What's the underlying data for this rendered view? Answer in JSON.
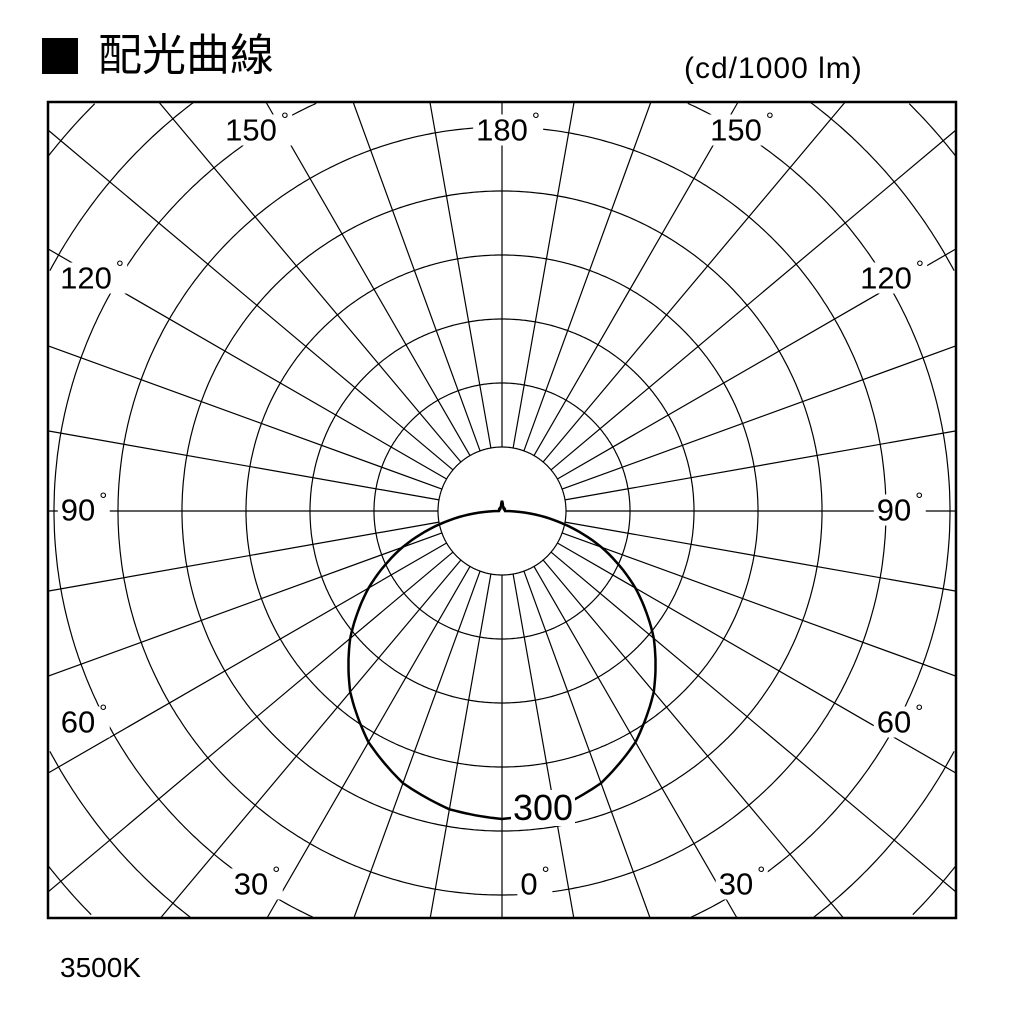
{
  "title": "配光曲線",
  "unit": "(cd/1000 lm)",
  "footer": "3500K",
  "chart_data": {
    "type": "polar",
    "title": "配光曲線",
    "unit": "(cd/1000 lm)",
    "angle_labels": [
      {
        "text": "180",
        "deg": "°"
      },
      {
        "text": "150",
        "deg": "°"
      },
      {
        "text": "150",
        "deg": "°"
      },
      {
        "text": "120",
        "deg": "°"
      },
      {
        "text": "120",
        "deg": "°"
      },
      {
        "text": "90",
        "deg": "°"
      },
      {
        "text": "90",
        "deg": "°"
      },
      {
        "text": "60",
        "deg": "°"
      },
      {
        "text": "60",
        "deg": "°"
      },
      {
        "text": "30",
        "deg": "°"
      },
      {
        "text": "30",
        "deg": "°"
      },
      {
        "text": "0",
        "deg": "°"
      }
    ],
    "radial_label": "300",
    "grid": true,
    "radial_line_step_deg": 10,
    "series": [
      {
        "angles_deg": [
          0,
          10,
          20,
          30,
          40,
          50,
          60,
          70,
          80,
          90,
          100,
          120,
          150,
          170,
          180
        ],
        "values_cd": [
          300,
          295,
          282,
          260,
          230,
          193,
          150,
          103,
          52,
          3,
          3,
          3,
          3,
          5,
          10
        ]
      }
    ],
    "caption": "3500K"
  }
}
